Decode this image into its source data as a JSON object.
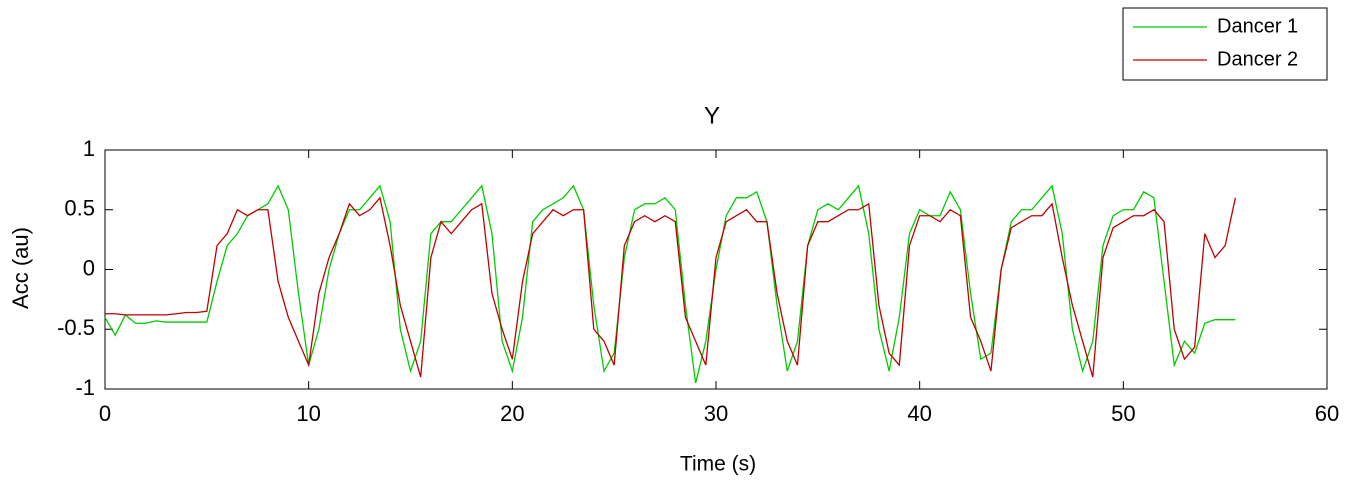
{
  "chart_data": {
    "type": "line",
    "title": "Y",
    "xlabel": "Time (s)",
    "ylabel": "Acc (au)",
    "x": [
      0,
      0.5,
      1,
      1.5,
      2,
      2.5,
      3,
      3.5,
      4,
      4.5,
      5,
      5.5,
      6,
      6.5,
      7,
      7.5,
      8,
      8.5,
      9,
      9.5,
      10,
      10.5,
      11,
      11.5,
      12,
      12.5,
      13,
      13.5,
      14,
      14.5,
      15,
      15.5,
      16,
      16.5,
      17,
      17.5,
      18,
      18.5,
      19,
      19.5,
      20,
      20.5,
      21,
      21.5,
      22,
      22.5,
      23,
      23.5,
      24,
      24.5,
      25,
      25.5,
      26,
      26.5,
      27,
      27.5,
      28,
      28.5,
      29,
      29.5,
      30,
      30.5,
      31,
      31.5,
      32,
      32.5,
      33,
      33.5,
      34,
      34.5,
      35,
      35.5,
      36,
      36.5,
      37,
      37.5,
      38,
      38.5,
      39,
      39.5,
      40,
      40.5,
      41,
      41.5,
      42,
      42.5,
      43,
      43.5,
      44,
      44.5,
      45,
      45.5,
      46,
      46.5,
      47,
      47.5,
      48,
      48.5,
      49,
      49.5,
      50,
      50.5,
      51,
      51.5,
      52,
      52.5,
      53,
      53.5,
      54,
      54.5,
      55,
      55.5
    ],
    "series": [
      {
        "name": "Dancer 1",
        "color": "#00cc00",
        "values": [
          -0.4,
          -0.55,
          -0.38,
          -0.45,
          -0.45,
          -0.43,
          -0.44,
          -0.44,
          -0.44,
          -0.44,
          -0.44,
          -0.1,
          0.2,
          0.3,
          0.45,
          0.5,
          0.55,
          0.7,
          0.5,
          -0.2,
          -0.8,
          -0.5,
          0,
          0.3,
          0.5,
          0.5,
          0.6,
          0.7,
          0.4,
          -0.5,
          -0.85,
          -0.6,
          0.3,
          0.4,
          0.4,
          0.5,
          0.6,
          0.7,
          0.3,
          -0.6,
          -0.85,
          -0.4,
          0.4,
          0.5,
          0.55,
          0.6,
          0.7,
          0.5,
          -0.3,
          -0.85,
          -0.7,
          0.1,
          0.5,
          0.55,
          0.55,
          0.6,
          0.5,
          -0.3,
          -0.95,
          -0.6,
          0,
          0.45,
          0.6,
          0.6,
          0.65,
          0.4,
          -0.3,
          -0.85,
          -0.6,
          0.2,
          0.5,
          0.55,
          0.5,
          0.6,
          0.7,
          0.3,
          -0.5,
          -0.85,
          -0.4,
          0.3,
          0.5,
          0.45,
          0.45,
          0.65,
          0.5,
          -0.2,
          -0.75,
          -0.7,
          0,
          0.4,
          0.5,
          0.5,
          0.6,
          0.7,
          0.3,
          -0.5,
          -0.85,
          -0.6,
          0.2,
          0.45,
          0.5,
          0.5,
          0.65,
          0.6,
          -0.1,
          -0.8,
          -0.6,
          -0.7,
          -0.45,
          -0.42,
          -0.42,
          -0.42
        ]
      },
      {
        "name": "Dancer 2",
        "color": "#c00000",
        "values": [
          -0.37,
          -0.37,
          -0.38,
          -0.38,
          -0.38,
          -0.38,
          -0.38,
          -0.37,
          -0.36,
          -0.36,
          -0.35,
          0.2,
          0.3,
          0.5,
          0.45,
          0.5,
          0.5,
          -0.1,
          -0.4,
          -0.6,
          -0.8,
          -0.2,
          0.1,
          0.3,
          0.55,
          0.45,
          0.5,
          0.6,
          0.2,
          -0.3,
          -0.6,
          -0.9,
          0.1,
          0.4,
          0.3,
          0.4,
          0.5,
          0.55,
          -0.2,
          -0.5,
          -0.75,
          -0.1,
          0.3,
          0.4,
          0.5,
          0.45,
          0.5,
          0.5,
          -0.5,
          -0.6,
          -0.8,
          0.2,
          0.4,
          0.45,
          0.4,
          0.45,
          0.4,
          -0.4,
          -0.6,
          -0.8,
          0.1,
          0.4,
          0.45,
          0.5,
          0.4,
          0.4,
          -0.2,
          -0.6,
          -0.8,
          0.2,
          0.4,
          0.4,
          0.45,
          0.5,
          0.5,
          0.55,
          -0.3,
          -0.7,
          -0.8,
          0.2,
          0.45,
          0.45,
          0.4,
          0.5,
          0.45,
          -0.4,
          -0.6,
          -0.85,
          0,
          0.35,
          0.4,
          0.45,
          0.45,
          0.55,
          0.1,
          -0.3,
          -0.6,
          -0.9,
          0.1,
          0.35,
          0.4,
          0.45,
          0.45,
          0.5,
          0.4,
          -0.5,
          -0.75,
          -0.65,
          0.3,
          0.1,
          0.2,
          0.6
        ]
      }
    ],
    "xlim": [
      0,
      60
    ],
    "xticks": [
      0,
      10,
      20,
      30,
      40,
      50,
      60
    ],
    "ylim": [
      -1,
      1
    ],
    "yticks": [
      -1,
      -0.5,
      0,
      0.5,
      1
    ],
    "legend": "top-right"
  }
}
